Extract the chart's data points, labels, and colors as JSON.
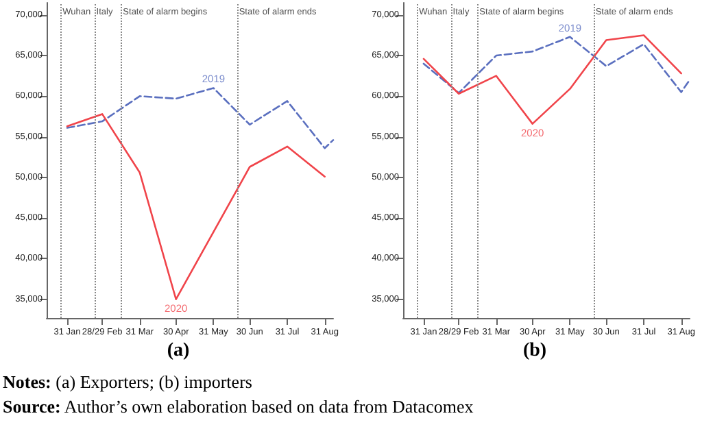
{
  "chart_data": [
    {
      "type": "line",
      "xlabel": "(a)",
      "xlim": [
        "--01-14",
        "--09-07"
      ],
      "ylim": [
        32700,
        71500
      ],
      "xticks": [
        {
          "value": "--01-31",
          "label": "31 Jan"
        },
        {
          "value": "--02-29",
          "label": "28/29 Feb"
        },
        {
          "value": "--03-31",
          "label": "31 Mar"
        },
        {
          "value": "--04-30",
          "label": "30 Apr"
        },
        {
          "value": "--05-31",
          "label": "31 May"
        },
        {
          "value": "--06-30",
          "label": "30 Jun"
        },
        {
          "value": "--07-31",
          "label": "31 Jul"
        },
        {
          "value": "--08-31",
          "label": "31 Aug"
        }
      ],
      "yticks": [
        {
          "value": 35000,
          "label": "35,000"
        },
        {
          "value": 40000,
          "label": "40,000"
        },
        {
          "value": 45000,
          "label": "45,000"
        },
        {
          "value": 50000,
          "label": "50,000"
        },
        {
          "value": 55000,
          "label": "55,000"
        },
        {
          "value": 60000,
          "label": "60,000"
        },
        {
          "value": 65000,
          "label": "65,000"
        },
        {
          "value": 70000,
          "label": "70,000"
        }
      ],
      "grid": false,
      "marker": "none",
      "series": [
        {
          "color": "#5a6fbf",
          "line_style": "dashed",
          "x": [
            "--01-31",
            "--02-29",
            "--03-31",
            "--04-30",
            "--05-31",
            "--06-30",
            "--07-31",
            "--08-31",
            "--09-07"
          ],
          "values": [
            56100,
            56900,
            60000,
            59700,
            61000,
            56500,
            59400,
            53600,
            54600
          ]
        },
        {
          "color": "#f0444a",
          "line_style": "solid",
          "x": [
            "--01-31",
            "--02-29",
            "--03-31",
            "--04-30",
            "--06-30",
            "--07-31",
            "--08-31"
          ],
          "values": [
            56300,
            57800,
            50600,
            35000,
            51300,
            53800,
            50100
          ]
        }
      ],
      "ref_lines": [
        {
          "axis": "x",
          "value": "--01-26",
          "label": "Wuhan",
          "color": "#888888",
          "line_style": "dotted"
        },
        {
          "axis": "x",
          "value": "--02-23",
          "label": "Italy",
          "color": "#888888",
          "line_style": "dotted"
        },
        {
          "axis": "x",
          "value": "--03-16",
          "label": "State of alarm begins",
          "color": "#888888",
          "line_style": "dotted"
        },
        {
          "axis": "x",
          "value": "--06-20",
          "label": "State of alarm ends",
          "color": "#888888",
          "line_style": "dotted"
        }
      ],
      "annotations": [
        {
          "text": "2019",
          "x": "--05-31",
          "y": 61000
        },
        {
          "text": "2020",
          "x": "--04-30",
          "y": 35000
        },
        "Notes: (a) Exporters; (b) importers",
        "Source: Author’s own elaboration based on data from Datacomex"
      ]
    },
    {
      "type": "line",
      "xlabel": "(b)",
      "xlim": [
        "--01-14",
        "--09-07"
      ],
      "ylim": [
        32700,
        71500
      ],
      "xticks": [
        {
          "value": "--01-31",
          "label": "31 Jan"
        },
        {
          "value": "--02-29",
          "label": "28/29 Feb"
        },
        {
          "value": "--03-31",
          "label": "31 Mar"
        },
        {
          "value": "--04-30",
          "label": "30 Apr"
        },
        {
          "value": "--05-31",
          "label": "31 May"
        },
        {
          "value": "--06-30",
          "label": "30 Jun"
        },
        {
          "value": "--07-31",
          "label": "31 Jul"
        },
        {
          "value": "--08-31",
          "label": "31 Aug"
        }
      ],
      "yticks": [
        {
          "value": 35000,
          "label": "35,000"
        },
        {
          "value": 40000,
          "label": "40,000"
        },
        {
          "value": 45000,
          "label": "45,000"
        },
        {
          "value": 50000,
          "label": "50,000"
        },
        {
          "value": 55000,
          "label": "55,000"
        },
        {
          "value": 60000,
          "label": "60,000"
        },
        {
          "value": 65000,
          "label": "65,000"
        },
        {
          "value": 70000,
          "label": "70,000"
        }
      ],
      "grid": false,
      "marker": "none",
      "series": [
        {
          "color": "#5a6fbf",
          "line_style": "dashed",
          "x": [
            "--01-31",
            "--02-29",
            "--03-31",
            "--04-30",
            "--05-31",
            "--06-30",
            "--07-31",
            "--08-31",
            "--09-07"
          ],
          "values": [
            64000,
            60400,
            65000,
            65500,
            67300,
            63700,
            66400,
            60500,
            62000
          ]
        },
        {
          "color": "#f0444a",
          "line_style": "solid",
          "x": [
            "--01-31",
            "--02-29",
            "--03-31",
            "--04-30",
            "--05-31",
            "--06-30",
            "--07-31",
            "--08-31"
          ],
          "values": [
            64600,
            60300,
            62500,
            56600,
            60900,
            66900,
            67500,
            62800
          ]
        }
      ],
      "ref_lines": [
        {
          "axis": "x",
          "value": "--01-26",
          "label": "Wuhan",
          "color": "#888888",
          "line_style": "dotted"
        },
        {
          "axis": "x",
          "value": "--02-23",
          "label": "Italy",
          "color": "#888888",
          "line_style": "dotted"
        },
        {
          "axis": "x",
          "value": "--03-16",
          "label": "State of alarm begins",
          "color": "#888888",
          "line_style": "dotted"
        },
        {
          "axis": "x",
          "value": "--06-20",
          "label": "State of alarm ends",
          "color": "#888888",
          "line_style": "dotted"
        }
      ],
      "annotations": [
        {
          "text": "2019",
          "x": "--05-31",
          "y": 67300
        },
        {
          "text": "2020",
          "x": "--04-30",
          "y": 56600
        }
      ]
    }
  ]
}
